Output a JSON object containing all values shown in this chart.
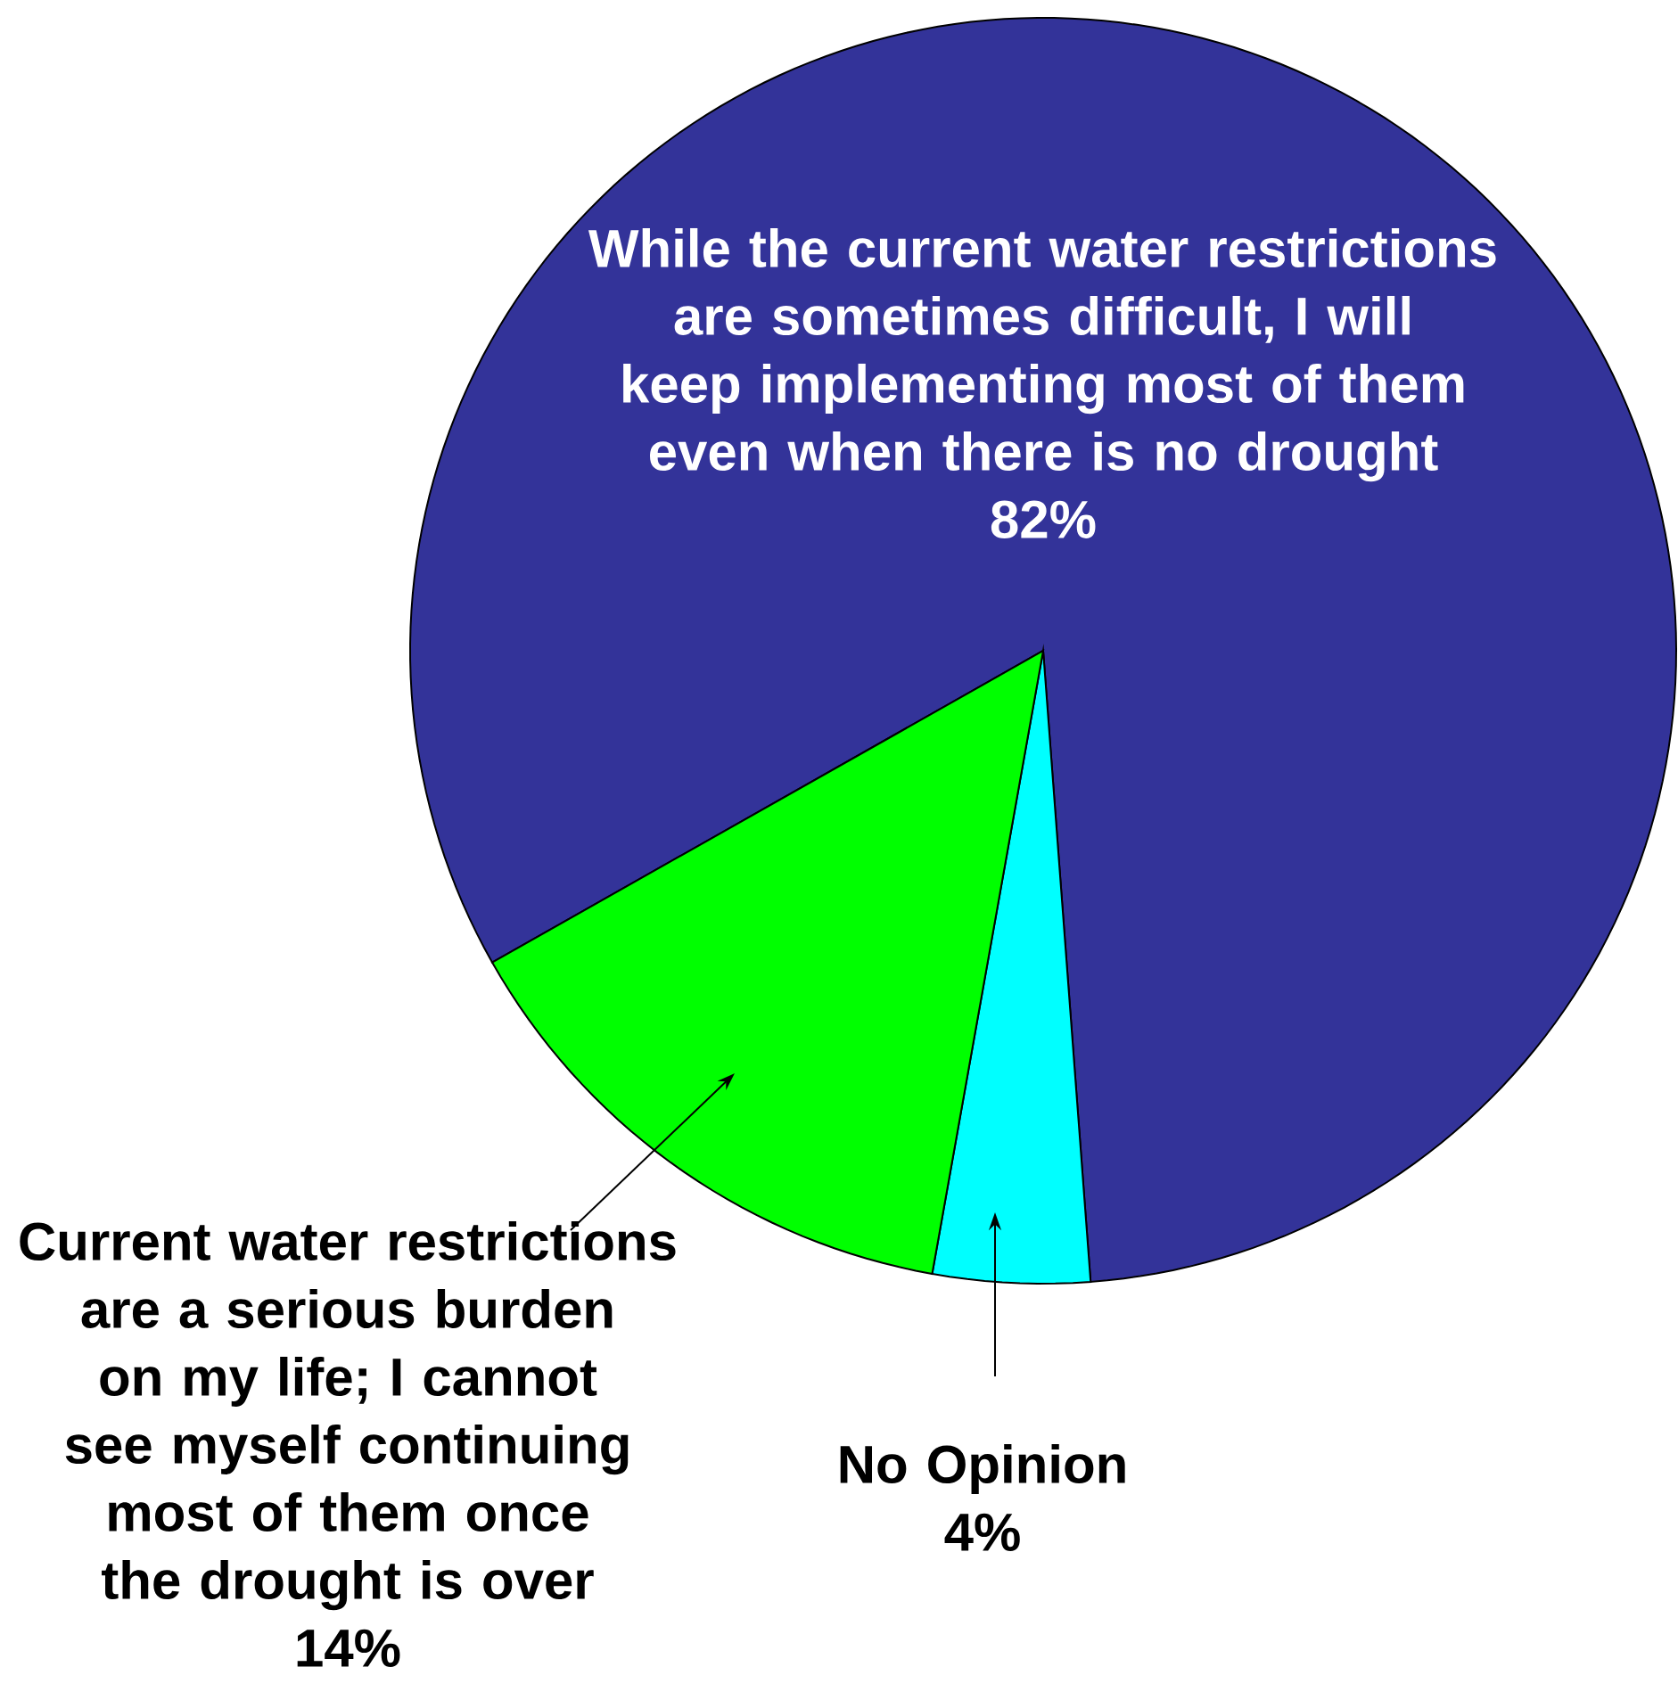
{
  "chart_data": {
    "type": "pie",
    "categories": [
      "While the current water restrictions are sometimes difficult, I will keep implementing most of them even when there is no drought",
      "No Opinion",
      "Current water restrictions are a serious burden on my life; I cannot see myself continuing most of them once the drought is over"
    ],
    "values": [
      82,
      4,
      14
    ],
    "colors": [
      "#333399",
      "#00ffff",
      "#00ff00"
    ],
    "value_labels": [
      "82%",
      "4%",
      "14%"
    ]
  }
}
